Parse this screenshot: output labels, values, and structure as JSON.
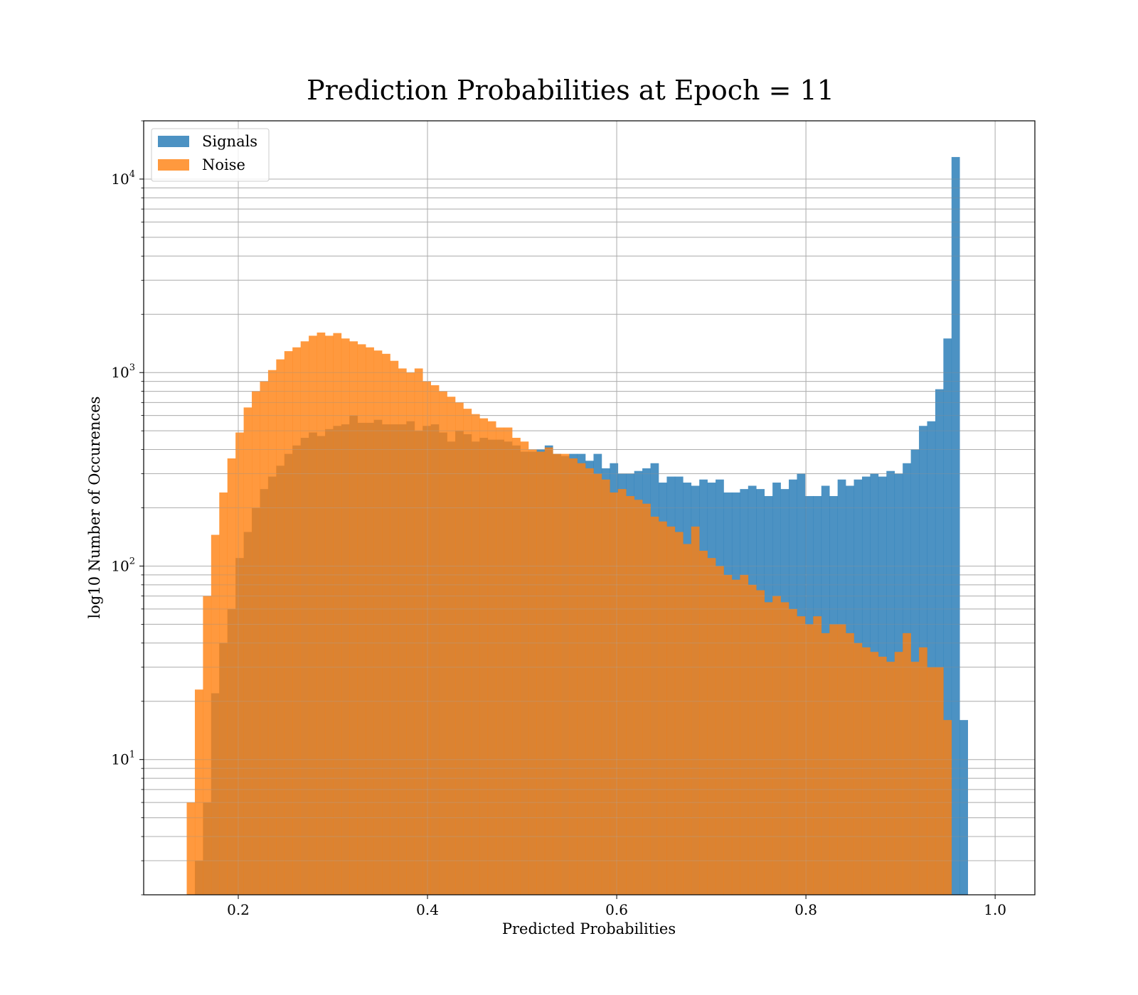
{
  "chart_data": {
    "type": "bar",
    "title": "Prediction Probabilities at Epoch = 11",
    "xlabel": "Predicted Probabilities",
    "ylabel": "log10 Number of Occurences",
    "xlim": [
      0.1,
      1.042
    ],
    "ylim": [
      2,
      20000
    ],
    "yscale": "log",
    "grid": true,
    "legend_position": "top-left",
    "x_ticks": [
      "0.2",
      "0.4",
      "0.6",
      "0.8",
      "1.0"
    ],
    "x_tick_values": [
      0.2,
      0.4,
      0.6,
      0.8,
      1.0
    ],
    "y_ticks": [
      {
        "base": "10",
        "exp": "1",
        "value": 10
      },
      {
        "base": "10",
        "exp": "2",
        "value": 100
      },
      {
        "base": "10",
        "exp": "3",
        "value": 1000
      },
      {
        "base": "10",
        "exp": "4",
        "value": 10000
      }
    ],
    "series": [
      {
        "name": "Signals",
        "color": "#1f77b4",
        "opacity": 0.8,
        "bin_start": 0.1455,
        "bin_width": 0.0086,
        "values": [
          0,
          3,
          6,
          22,
          40,
          60,
          110,
          150,
          200,
          250,
          290,
          330,
          380,
          420,
          460,
          490,
          470,
          510,
          530,
          540,
          600,
          550,
          550,
          570,
          540,
          540,
          540,
          560,
          500,
          530,
          540,
          490,
          440,
          500,
          480,
          440,
          460,
          450,
          450,
          440,
          420,
          390,
          390,
          400,
          420,
          380,
          370,
          380,
          380,
          350,
          380,
          320,
          340,
          300,
          300,
          310,
          320,
          340,
          270,
          290,
          290,
          270,
          260,
          280,
          270,
          280,
          240,
          240,
          250,
          260,
          250,
          230,
          270,
          250,
          280,
          300,
          230,
          230,
          260,
          230,
          280,
          260,
          280,
          290,
          300,
          290,
          310,
          300,
          340,
          400,
          530,
          560,
          820,
          1500,
          13000,
          16
        ]
      },
      {
        "name": "Noise",
        "color": "#ff7f0e",
        "opacity": 0.8,
        "bin_start": 0.1455,
        "bin_width": 0.0086,
        "values": [
          6,
          23,
          70,
          145,
          240,
          360,
          490,
          660,
          800,
          900,
          1030,
          1170,
          1290,
          1350,
          1450,
          1550,
          1610,
          1550,
          1600,
          1500,
          1450,
          1400,
          1350,
          1300,
          1250,
          1150,
          1050,
          1000,
          1050,
          900,
          860,
          800,
          750,
          700,
          650,
          610,
          580,
          560,
          520,
          520,
          460,
          440,
          400,
          390,
          410,
          380,
          380,
          360,
          340,
          320,
          300,
          280,
          240,
          250,
          230,
          220,
          210,
          180,
          170,
          160,
          150,
          130,
          160,
          120,
          110,
          100,
          90,
          85,
          90,
          80,
          75,
          65,
          70,
          65,
          60,
          55,
          50,
          55,
          45,
          50,
          50,
          45,
          40,
          38,
          36,
          34,
          32,
          36,
          45,
          32,
          38,
          30,
          30,
          16,
          0,
          0
        ]
      }
    ]
  }
}
